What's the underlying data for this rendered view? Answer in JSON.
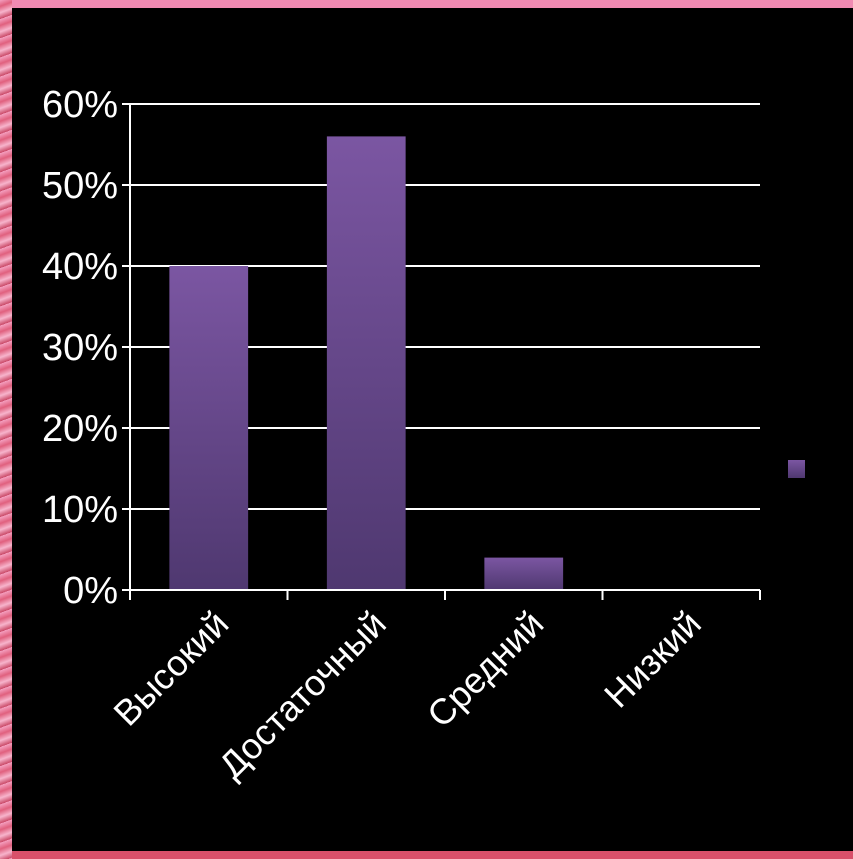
{
  "chart_data": {
    "type": "bar",
    "categories": [
      "Высокий",
      "Достаточный",
      "Средний",
      "Низкий"
    ],
    "values": [
      40,
      56,
      4,
      0
    ],
    "ylim": [
      0,
      60
    ],
    "yticks": [
      "0%",
      "10%",
      "20%",
      "30%",
      "40%",
      "50%",
      "60%"
    ],
    "grid": true,
    "legend": "right",
    "bar_color": "#6a4a8c",
    "background": "#000000"
  }
}
